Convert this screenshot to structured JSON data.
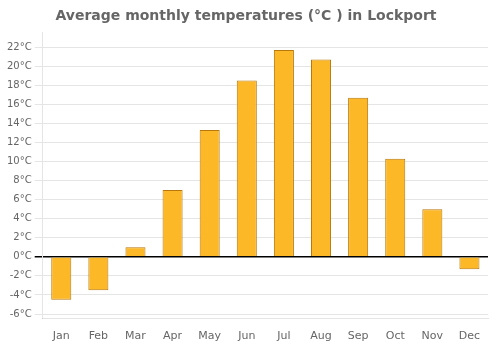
{
  "chart_data": {
    "type": "bar",
    "title": "Average monthly temperatures (°C ) in Lockport",
    "categories": [
      "Jan",
      "Feb",
      "Mar",
      "Apr",
      "May",
      "Jun",
      "Jul",
      "Aug",
      "Sep",
      "Oct",
      "Nov",
      "Dec"
    ],
    "values": [
      -4.5,
      -3.5,
      1.0,
      7.0,
      13.3,
      18.5,
      21.7,
      20.7,
      16.7,
      10.3,
      5.0,
      -1.3
    ],
    "color": "#FDB827",
    "ylim": [
      -6.5,
      23.5
    ],
    "yticks": [
      {
        "value": -6,
        "label": "-6°C"
      },
      {
        "value": -4,
        "label": "-4°C"
      },
      {
        "value": -2,
        "label": "-2°C"
      },
      {
        "value": 0,
        "label": "0°C"
      },
      {
        "value": 2,
        "label": "2°C"
      },
      {
        "value": 4,
        "label": "4°C"
      },
      {
        "value": 6,
        "label": "6°C"
      },
      {
        "value": 8,
        "label": "8°C"
      },
      {
        "value": 10,
        "label": "10°C"
      },
      {
        "value": 12,
        "label": "12°C"
      },
      {
        "value": 14,
        "label": "14°C"
      },
      {
        "value": 16,
        "label": "16°C"
      },
      {
        "value": 18,
        "label": "18°C"
      },
      {
        "value": 20,
        "label": "20°C"
      },
      {
        "value": 22,
        "label": "22°C"
      }
    ],
    "grid": true
  }
}
